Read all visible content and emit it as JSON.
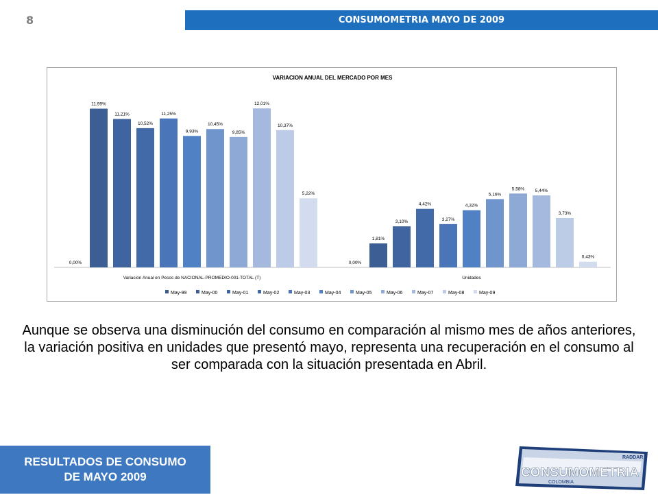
{
  "header": {
    "page_number": "8",
    "title": "CONSUMOMETRIA MAYO DE 2009"
  },
  "chart_data": {
    "type": "bar",
    "title": "VARIACION ANUAL DEL MERCADO POR MES",
    "groups": [
      "Variacion Anual en Pesos de NACIONAL-PROMEDIO-001-TOTAL (T)",
      "Unidades"
    ],
    "series": [
      {
        "name": "May-99",
        "values": [
          0.0,
          0.0
        ],
        "labels": [
          "0,00%",
          "0,00%"
        ],
        "color": "#3b5c8f"
      },
      {
        "name": "May-00",
        "values": [
          11.99,
          1.81
        ],
        "labels": [
          "11,99%",
          "1,81%"
        ],
        "color": "#3d5e94"
      },
      {
        "name": "May-01",
        "values": [
          11.21,
          3.1
        ],
        "labels": [
          "11,21%",
          "3,10%"
        ],
        "color": "#4064a0"
      },
      {
        "name": "May-02",
        "values": [
          10.52,
          4.42
        ],
        "labels": [
          "10,52%",
          "4,42%"
        ],
        "color": "#4269a8"
      },
      {
        "name": "May-03",
        "values": [
          11.25,
          3.27
        ],
        "labels": [
          "11,25%",
          "3,27%"
        ],
        "color": "#4a75b8"
      },
      {
        "name": "May-04",
        "values": [
          9.93,
          4.32
        ],
        "labels": [
          "9,93%",
          "4,32%"
        ],
        "color": "#5181c5"
      },
      {
        "name": "May-05",
        "values": [
          10.45,
          5.16
        ],
        "labels": [
          "10,45%",
          "5,16%"
        ],
        "color": "#6f95cc"
      },
      {
        "name": "May-06",
        "values": [
          9.85,
          5.58
        ],
        "labels": [
          "9,85%",
          "5,58%"
        ],
        "color": "#8ea9d6"
      },
      {
        "name": "May-07",
        "values": [
          12.01,
          5.44
        ],
        "labels": [
          "12,01%",
          "5,44%"
        ],
        "color": "#a4b9dd"
      },
      {
        "name": "May-08",
        "values": [
          10.37,
          3.73
        ],
        "labels": [
          "10,37%",
          "3,73%"
        ],
        "color": "#bccbe6"
      },
      {
        "name": "May-09",
        "values": [
          5.22,
          0.43
        ],
        "labels": [
          "5,22%",
          "0,43%"
        ],
        "color": "#d2dcee"
      }
    ],
    "ylim": [
      0,
      13
    ],
    "grid": false,
    "legend": "bottom"
  },
  "caption": "Aunque se observa una disminución del consumo en comparación al mismo mes de años anteriores, la variación positiva en unidades que presentó mayo, representa una recuperación en el consumo al ser comparada con la situación presentada en Abril.",
  "footer": {
    "line1": "RESULTADOS DE CONSUMO",
    "line2": "DE MAYO 2009"
  },
  "logo": {
    "text": "CONSUMOMETRIA",
    "subtext": "COLOMBIA",
    "brand": "RADDAR"
  }
}
